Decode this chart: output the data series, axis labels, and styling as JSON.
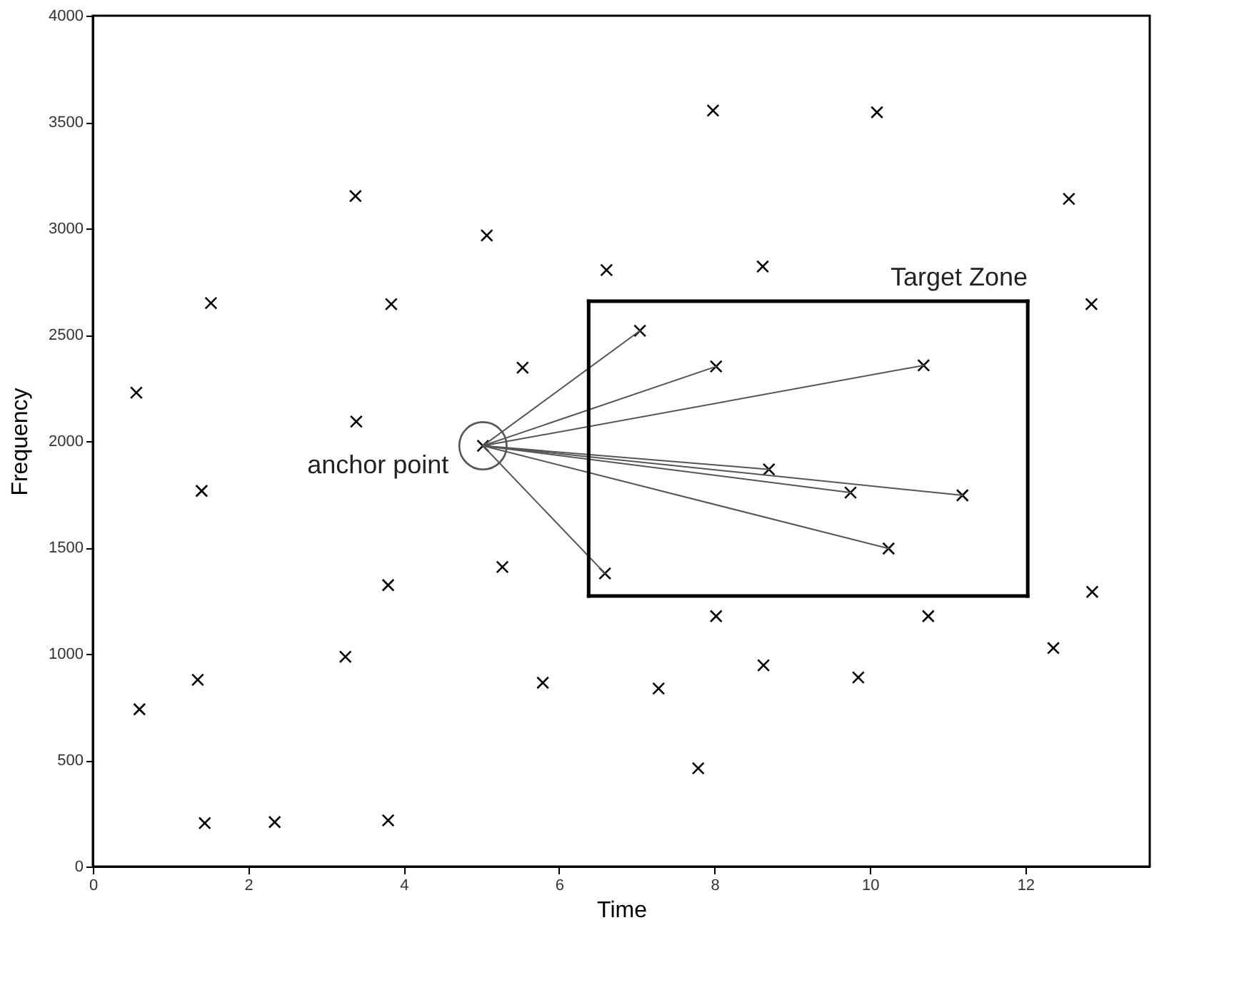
{
  "chart_data": {
    "type": "scatter",
    "xlabel": "Time",
    "ylabel": "Frequency",
    "xlim": [
      0,
      13.6
    ],
    "ylim": [
      0,
      4000
    ],
    "xticks": [
      0,
      2,
      4,
      6,
      8,
      10,
      12
    ],
    "yticks": [
      0,
      500,
      1000,
      1500,
      2000,
      2500,
      3000,
      3500,
      4000
    ],
    "grid": false,
    "marker": "cross",
    "series": [
      {
        "color": "#000000",
        "x": [
          1.44,
          2.34,
          3.8,
          0.6,
          1.35,
          3.25,
          3.8,
          5.27,
          5.79,
          7.28,
          7.79,
          8.02,
          8.63,
          9.85,
          10.75,
          12.36,
          12.86,
          0.56,
          1.52,
          1.4,
          3.38,
          3.39,
          3.84,
          5.07,
          5.53,
          5.02,
          6.59,
          6.61,
          7.04,
          7.98,
          8.02,
          8.62,
          8.7,
          9.75,
          10.09,
          10.24,
          10.69,
          11.19,
          12.56,
          12.85
        ],
        "values": [
          204,
          209,
          217,
          739,
          878,
          986,
          1323,
          1408,
          864,
          837,
          462,
          1177,
          946,
          889,
          1177,
          1027,
          1291,
          2228,
          2649,
          1766,
          3152,
          2092,
          2644,
          2967,
          2345,
          1978,
          1378,
          2804,
          2519,
          3554,
          2351,
          2821,
          1867,
          1758,
          3546,
          1495,
          2356,
          1745,
          3139,
          2644
        ]
      },
      {
        "type": "scatter",
        "color": "#555555",
        "marker": "circle",
        "x": [
          5.02
        ],
        "values": [
          1978
        ]
      },
      {
        "type": "line",
        "color": "#555555",
        "line_style": "solid",
        "marker": "none",
        "x": [
          5.02,
          7.04
        ],
        "values": [
          1978,
          2519
        ]
      },
      {
        "type": "line",
        "color": "#555555",
        "line_style": "solid",
        "marker": "none",
        "x": [
          5.02,
          8.02
        ],
        "values": [
          1978,
          2351
        ]
      },
      {
        "type": "line",
        "color": "#555555",
        "line_style": "solid",
        "marker": "none",
        "x": [
          5.02,
          10.69
        ],
        "values": [
          1978,
          2356
        ]
      },
      {
        "type": "line",
        "color": "#555555",
        "line_style": "solid",
        "marker": "none",
        "x": [
          5.02,
          8.7
        ],
        "values": [
          1978,
          1867
        ]
      },
      {
        "type": "line",
        "color": "#555555",
        "line_style": "solid",
        "marker": "none",
        "x": [
          5.02,
          9.75
        ],
        "values": [
          1978,
          1758
        ]
      },
      {
        "type": "line",
        "color": "#555555",
        "line_style": "solid",
        "marker": "none",
        "x": [
          5.02,
          11.19
        ],
        "values": [
          1978,
          1745
        ]
      },
      {
        "type": "line",
        "color": "#555555",
        "line_style": "solid",
        "marker": "none",
        "x": [
          5.02,
          10.24
        ],
        "values": [
          1978,
          1495
        ]
      },
      {
        "type": "line",
        "color": "#555555",
        "line_style": "solid",
        "marker": "none",
        "x": [
          5.02,
          6.59
        ],
        "values": [
          1978,
          1378
        ]
      },
      {
        "type": "line",
        "color": "#000000",
        "line_style": "solid",
        "marker": "none",
        "x": [
          6.38,
          12.03
        ],
        "values": [
          1272,
          1272
        ]
      },
      {
        "type": "line",
        "color": "#000000",
        "line_style": "solid",
        "marker": "none",
        "x": [
          12.03,
          12.03
        ],
        "values": [
          1272,
          2658
        ]
      },
      {
        "type": "line",
        "color": "#000000",
        "line_style": "solid",
        "marker": "none",
        "x": [
          12.03,
          6.38
        ],
        "values": [
          2658,
          2658
        ]
      },
      {
        "type": "line",
        "color": "#000000",
        "line_style": "solid",
        "marker": "none",
        "x": [
          6.38,
          6.38
        ],
        "values": [
          2658,
          1272
        ]
      }
    ],
    "annotations": [
      {
        "text": "anchor point",
        "x": 5.02,
        "y": 1978
      },
      {
        "text": "Target Zone",
        "x": 12.03,
        "y": 2658
      }
    ]
  }
}
